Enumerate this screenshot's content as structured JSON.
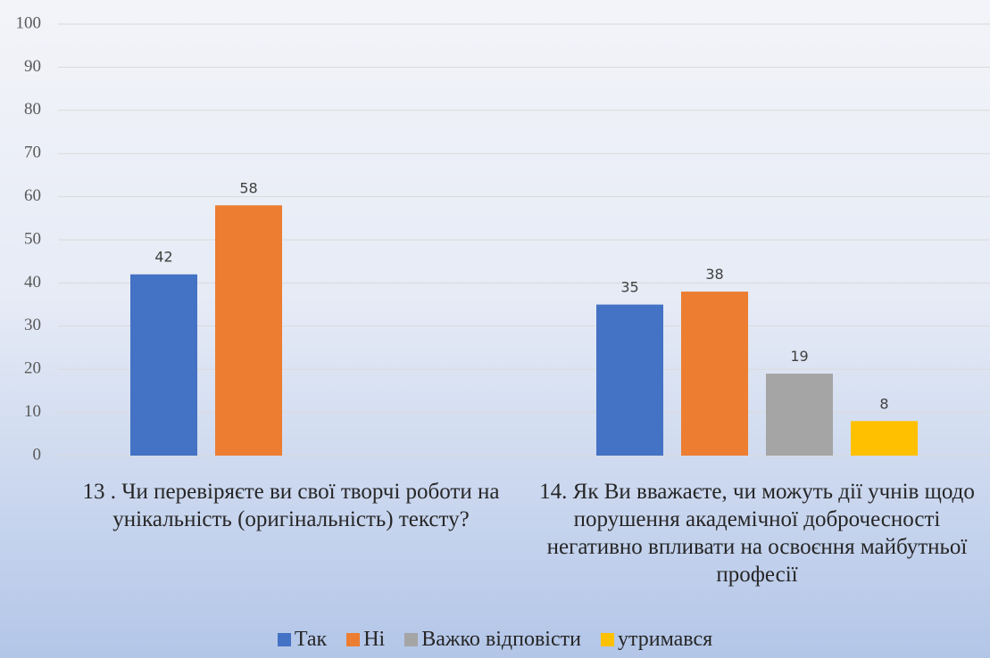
{
  "chart_data": {
    "type": "bar",
    "categories": [
      "13 . Чи перевіряєте ви свої творчі роботи на унікальність (оригінальність) тексту?",
      "14. Як Ви вважаєте, чи можуть дії учнів щодо порушення академічної доброчесності негативно впливати на освоєння майбутньої професії"
    ],
    "series": [
      {
        "name": "Так",
        "color": "#4472c4",
        "values": [
          42,
          35
        ]
      },
      {
        "name": "Ні",
        "color": "#ed7d31",
        "values": [
          58,
          38
        ]
      },
      {
        "name": "Важко відповісти",
        "color": "#a5a5a5",
        "values": [
          null,
          19
        ]
      },
      {
        "name": "утримався",
        "color": "#ffc000",
        "values": [
          null,
          8
        ]
      }
    ],
    "ylim": [
      0,
      100
    ],
    "yticks": [
      0,
      10,
      20,
      30,
      40,
      50,
      60,
      70,
      80,
      90,
      100
    ],
    "grid": true,
    "legend": "bottom"
  }
}
